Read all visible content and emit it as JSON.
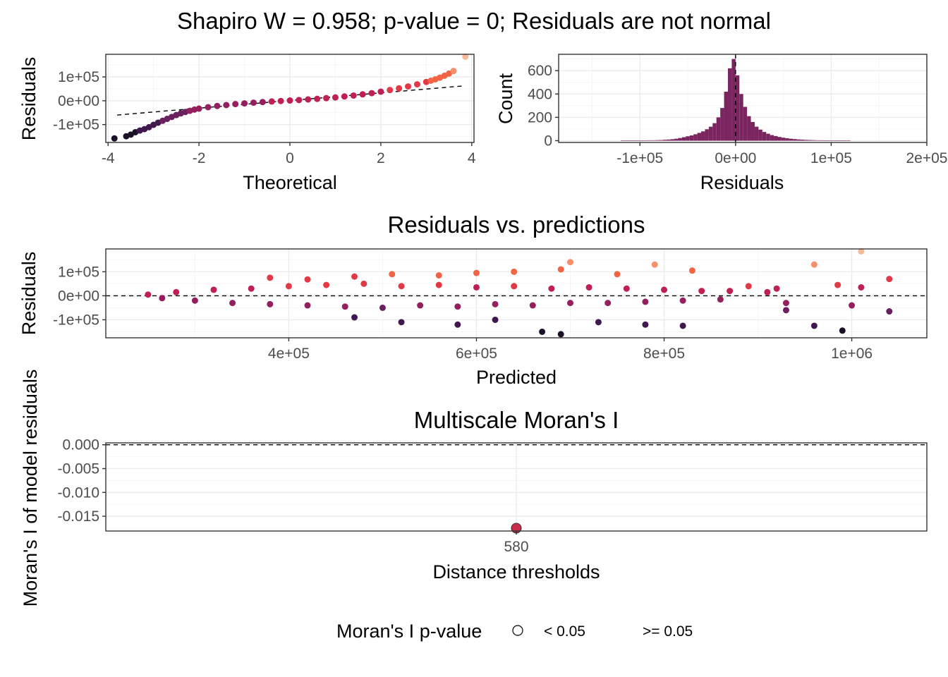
{
  "figure": {
    "title": "Shapiro W = 0.958; p-value = 0; Residuals are not normal"
  },
  "chart_data": [
    {
      "type": "scatter",
      "panel": "qq",
      "title": "",
      "xlabel": "Theoretical",
      "ylabel": "Residuals",
      "xlim": [
        -4.05,
        4.05
      ],
      "ylim": [
        -175000,
        195000
      ],
      "x_ticks": [
        -4,
        -2,
        0,
        2,
        4
      ],
      "x_tick_labels": [
        "-4",
        "-2",
        "0",
        "2",
        "4"
      ],
      "y_ticks": [
        100000,
        0,
        -100000
      ],
      "y_tick_labels": [
        "1e+05",
        "0e+00",
        "-1e+05"
      ],
      "reference_line": {
        "x": [
          -3.8,
          3.8
        ],
        "y": [
          -60000,
          62000
        ]
      },
      "points": {
        "x": [
          -3.86,
          -3.6,
          -3.5,
          -3.4,
          -3.3,
          -3.2,
          -3.1,
          -3.0,
          -2.9,
          -2.8,
          -2.7,
          -2.6,
          -2.5,
          -2.4,
          -2.3,
          -2.2,
          -2.1,
          -2.0,
          -1.8,
          -1.6,
          -1.4,
          -1.2,
          -1.0,
          -0.8,
          -0.6,
          -0.4,
          -0.2,
          0.0,
          0.2,
          0.4,
          0.6,
          0.8,
          1.0,
          1.2,
          1.4,
          1.6,
          1.8,
          2.0,
          2.2,
          2.4,
          2.6,
          2.8,
          3.0,
          3.1,
          3.2,
          3.3,
          3.4,
          3.5,
          3.6,
          3.86
        ],
        "y": [
          -158000,
          -149000,
          -142000,
          -132000,
          -125000,
          -119000,
          -111000,
          -101000,
          -92000,
          -84000,
          -76000,
          -68000,
          -60000,
          -53000,
          -47000,
          -42000,
          -37000,
          -33000,
          -27000,
          -22000,
          -18000,
          -14000,
          -11000,
          -8000,
          -5500,
          -3000,
          -1000,
          1000,
          3000,
          5500,
          8000,
          11000,
          14000,
          18000,
          22000,
          27000,
          32000,
          38000,
          45000,
          52000,
          60000,
          69000,
          79000,
          84000,
          90000,
          97000,
          105000,
          114000,
          125000,
          185000
        ]
      }
    },
    {
      "type": "bar",
      "panel": "histogram",
      "title": "",
      "xlabel": "Residuals",
      "ylabel": "Count",
      "xlim": [
        -185000,
        200000
      ],
      "ylim": [
        -15,
        740
      ],
      "x_ticks": [
        -100000,
        0,
        100000,
        200000
      ],
      "x_tick_labels": [
        "-1e+05",
        "0e+00",
        "1e+05",
        "2e+05"
      ],
      "y_ticks": [
        0,
        200,
        400,
        600
      ],
      "y_tick_labels": [
        "0",
        "200",
        "400",
        "600"
      ],
      "bin_width": 4000,
      "bins_start": [
        -120000,
        -116000,
        -112000,
        -108000,
        -104000,
        -100000,
        -96000,
        -92000,
        -88000,
        -84000,
        -80000,
        -76000,
        -72000,
        -68000,
        -64000,
        -60000,
        -56000,
        -52000,
        -48000,
        -44000,
        -40000,
        -36000,
        -32000,
        -28000,
        -24000,
        -20000,
        -16000,
        -12000,
        -8000,
        -4000,
        0,
        4000,
        8000,
        12000,
        16000,
        20000,
        24000,
        28000,
        32000,
        36000,
        40000,
        44000,
        48000,
        52000,
        56000,
        60000,
        64000,
        68000,
        72000,
        76000,
        80000,
        84000,
        88000,
        92000,
        96000,
        100000,
        104000,
        108000,
        112000,
        116000
      ],
      "counts": [
        1,
        1,
        1,
        2,
        2,
        3,
        3,
        4,
        4,
        5,
        6,
        8,
        10,
        13,
        17,
        23,
        30,
        38,
        45,
        55,
        67,
        80,
        98,
        120,
        150,
        200,
        280,
        420,
        620,
        700,
        560,
        400,
        290,
        210,
        160,
        120,
        95,
        75,
        60,
        48,
        40,
        32,
        26,
        21,
        17,
        14,
        11,
        9,
        7,
        6,
        5,
        4,
        4,
        3,
        3,
        2,
        2,
        1,
        1,
        1
      ],
      "vline_x": 0
    },
    {
      "type": "scatter",
      "panel": "residuals-vs-predictions",
      "title": "Residuals vs. predictions",
      "xlabel": "Predicted",
      "ylabel": "Residuals",
      "xlim": [
        205000,
        1080000
      ],
      "ylim": [
        -175000,
        195000
      ],
      "x_ticks": [
        400000,
        600000,
        800000,
        1000000
      ],
      "x_tick_labels": [
        "4e+05",
        "6e+05",
        "8e+05",
        "1e+06"
      ],
      "y_ticks": [
        100000,
        0,
        -100000
      ],
      "y_tick_labels": [
        "1e+05",
        "0e+00",
        "-1e+05"
      ],
      "hline_y": 0,
      "points": {
        "x": [
          250000,
          265000,
          280000,
          300000,
          320000,
          340000,
          360000,
          380000,
          400000,
          420000,
          440000,
          460000,
          480000,
          500000,
          520000,
          540000,
          560000,
          580000,
          600000,
          620000,
          640000,
          660000,
          680000,
          700000,
          720000,
          740000,
          760000,
          780000,
          800000,
          820000,
          840000,
          860000,
          380000,
          420000,
          470000,
          510000,
          560000,
          600000,
          640000,
          690000,
          700000,
          750000,
          790000,
          830000,
          470000,
          520000,
          580000,
          620000,
          670000,
          690000,
          730000,
          780000,
          820000,
          870000,
          890000,
          920000,
          930000,
          960000,
          985000,
          1000000,
          1010000,
          1040000,
          1040000,
          910000,
          930000,
          960000,
          990000,
          1010000
        ],
        "y": [
          5000,
          -10000,
          15000,
          -20000,
          25000,
          -30000,
          30000,
          -35000,
          40000,
          -40000,
          45000,
          -45000,
          50000,
          -50000,
          40000,
          -40000,
          45000,
          -45000,
          35000,
          -35000,
          40000,
          -40000,
          30000,
          -30000,
          35000,
          -30000,
          30000,
          -25000,
          25000,
          -20000,
          20000,
          -15000,
          75000,
          68000,
          80000,
          90000,
          85000,
          95000,
          100000,
          110000,
          140000,
          90000,
          130000,
          105000,
          -90000,
          -110000,
          -120000,
          -100000,
          -150000,
          -160000,
          -110000,
          -120000,
          -125000,
          20000,
          40000,
          30000,
          -60000,
          130000,
          45000,
          -40000,
          185000,
          70000,
          -65000,
          15000,
          -30000,
          -125000,
          -145000,
          35000
        ]
      }
    },
    {
      "type": "scatter",
      "panel": "moran",
      "title": "Multiscale Moran's I",
      "xlabel": "Distance thresholds",
      "ylabel": "Moran's I of model residuals",
      "xlim": [
        0.6,
        1.4
      ],
      "ylim": [
        -0.0181,
        0.0004
      ],
      "x_ticks": [
        1
      ],
      "x_tick_labels": [
        "580"
      ],
      "y_ticks": [
        0.0,
        -0.005,
        -0.01,
        -0.015
      ],
      "y_tick_labels": [
        "0.000",
        "-0.005",
        "-0.010",
        "-0.015"
      ],
      "hline_y": 0,
      "points": {
        "x": [
          1
        ],
        "y": [
          -0.0175
        ]
      },
      "legend": {
        "title": "Moran's I p-value",
        "entries": [
          "< 0.05",
          ">= 0.05"
        ],
        "position": "bottom"
      }
    }
  ],
  "colors": {
    "bar_fill": "#7b2560",
    "grid_major": "#ebebeb",
    "grid_minor": "#f5f5f5",
    "panel_border": "#333333",
    "moran_point": "#cc2a4d",
    "palette": [
      "#1a1028",
      "#40184f",
      "#6a1f5e",
      "#951e5f",
      "#c01f52",
      "#e13946",
      "#f26444",
      "#f6906b",
      "#f8b898"
    ]
  }
}
